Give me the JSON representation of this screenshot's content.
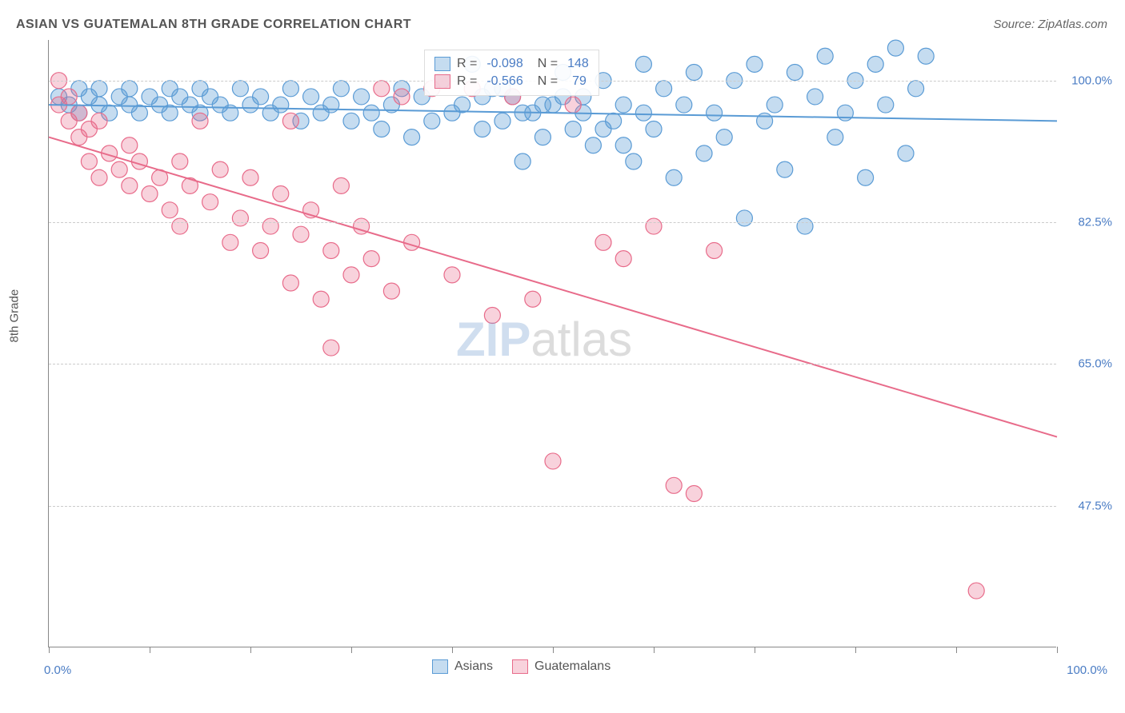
{
  "title": "ASIAN VS GUATEMALAN 8TH GRADE CORRELATION CHART",
  "source": "Source: ZipAtlas.com",
  "y_axis_label": "8th Grade",
  "x_start": "0.0%",
  "x_end": "100.0%",
  "watermark_zip": "ZIP",
  "watermark_atlas": "atlas",
  "chart": {
    "type": "scatter",
    "xlim": [
      0,
      100
    ],
    "ylim": [
      30,
      105
    ],
    "y_ticks": [
      47.5,
      65.0,
      82.5,
      100.0
    ],
    "y_tick_labels": [
      "47.5%",
      "65.0%",
      "82.5%",
      "100.0%"
    ],
    "x_ticks": [
      0,
      10,
      20,
      30,
      40,
      50,
      60,
      70,
      80,
      90,
      100
    ],
    "background_color": "#ffffff",
    "grid_color": "#cccccc",
    "marker_radius": 10,
    "marker_opacity": 0.45,
    "line_width": 2,
    "series": [
      {
        "name": "Asians",
        "color": "#5a9bd5",
        "fill": "rgba(90,155,213,0.35)",
        "stroke": "#5a9bd5",
        "r_value": "-0.098",
        "n_value": "148",
        "trend_line": {
          "x1": 0,
          "y1": 97,
          "x2": 100,
          "y2": 95
        },
        "points": [
          [
            1,
            98
          ],
          [
            2,
            97
          ],
          [
            3,
            99
          ],
          [
            3,
            96
          ],
          [
            4,
            98
          ],
          [
            5,
            97
          ],
          [
            5,
            99
          ],
          [
            6,
            96
          ],
          [
            7,
            98
          ],
          [
            8,
            97
          ],
          [
            8,
            99
          ],
          [
            9,
            96
          ],
          [
            10,
            98
          ],
          [
            11,
            97
          ],
          [
            12,
            99
          ],
          [
            12,
            96
          ],
          [
            13,
            98
          ],
          [
            14,
            97
          ],
          [
            15,
            99
          ],
          [
            15,
            96
          ],
          [
            16,
            98
          ],
          [
            17,
            97
          ],
          [
            18,
            96
          ],
          [
            19,
            99
          ],
          [
            20,
            97
          ],
          [
            21,
            98
          ],
          [
            22,
            96
          ],
          [
            23,
            97
          ],
          [
            24,
            99
          ],
          [
            25,
            95
          ],
          [
            26,
            98
          ],
          [
            27,
            96
          ],
          [
            28,
            97
          ],
          [
            29,
            99
          ],
          [
            30,
            95
          ],
          [
            31,
            98
          ],
          [
            32,
            96
          ],
          [
            33,
            94
          ],
          [
            34,
            97
          ],
          [
            35,
            99
          ],
          [
            36,
            93
          ],
          [
            37,
            98
          ],
          [
            38,
            95
          ],
          [
            39,
            100
          ],
          [
            40,
            96
          ],
          [
            41,
            97
          ],
          [
            42,
            102
          ],
          [
            43,
            94
          ],
          [
            44,
            99
          ],
          [
            45,
            95
          ],
          [
            46,
            98
          ],
          [
            47,
            90
          ],
          [
            48,
            96
          ],
          [
            49,
            93
          ],
          [
            50,
            97
          ],
          [
            51,
            101
          ],
          [
            52,
            94
          ],
          [
            53,
            98
          ],
          [
            54,
            92
          ],
          [
            55,
            100
          ],
          [
            56,
            95
          ],
          [
            57,
            97
          ],
          [
            58,
            90
          ],
          [
            59,
            102
          ],
          [
            60,
            94
          ],
          [
            61,
            99
          ],
          [
            62,
            88
          ],
          [
            63,
            97
          ],
          [
            64,
            101
          ],
          [
            65,
            91
          ],
          [
            66,
            96
          ],
          [
            67,
            93
          ],
          [
            68,
            100
          ],
          [
            69,
            83
          ],
          [
            70,
            102
          ],
          [
            71,
            95
          ],
          [
            72,
            97
          ],
          [
            73,
            89
          ],
          [
            74,
            101
          ],
          [
            75,
            82
          ],
          [
            76,
            98
          ],
          [
            77,
            103
          ],
          [
            78,
            93
          ],
          [
            79,
            96
          ],
          [
            80,
            100
          ],
          [
            81,
            88
          ],
          [
            82,
            102
          ],
          [
            83,
            97
          ],
          [
            84,
            104
          ],
          [
            85,
            91
          ],
          [
            86,
            99
          ],
          [
            87,
            103
          ],
          [
            43,
            98
          ],
          [
            45,
            99
          ],
          [
            47,
            96
          ],
          [
            49,
            97
          ],
          [
            51,
            98
          ],
          [
            53,
            96
          ],
          [
            55,
            94
          ],
          [
            57,
            92
          ],
          [
            59,
            96
          ]
        ]
      },
      {
        "name": "Guatemalans",
        "color": "#e86b8a",
        "fill": "rgba(232,107,138,0.30)",
        "stroke": "#e86b8a",
        "r_value": "-0.566",
        "n_value": "79",
        "trend_line": {
          "x1": 0,
          "y1": 93,
          "x2": 100,
          "y2": 56
        },
        "points": [
          [
            1,
            100
          ],
          [
            1,
            97
          ],
          [
            2,
            98
          ],
          [
            2,
            95
          ],
          [
            3,
            96
          ],
          [
            3,
            93
          ],
          [
            4,
            94
          ],
          [
            4,
            90
          ],
          [
            5,
            95
          ],
          [
            5,
            88
          ],
          [
            6,
            91
          ],
          [
            7,
            89
          ],
          [
            8,
            92
          ],
          [
            8,
            87
          ],
          [
            9,
            90
          ],
          [
            10,
            86
          ],
          [
            11,
            88
          ],
          [
            12,
            84
          ],
          [
            13,
            90
          ],
          [
            13,
            82
          ],
          [
            14,
            87
          ],
          [
            15,
            95
          ],
          [
            16,
            85
          ],
          [
            17,
            89
          ],
          [
            18,
            80
          ],
          [
            19,
            83
          ],
          [
            20,
            88
          ],
          [
            21,
            79
          ],
          [
            22,
            82
          ],
          [
            23,
            86
          ],
          [
            24,
            75
          ],
          [
            24,
            95
          ],
          [
            25,
            81
          ],
          [
            26,
            84
          ],
          [
            27,
            73
          ],
          [
            28,
            79
          ],
          [
            28,
            67
          ],
          [
            29,
            87
          ],
          [
            30,
            76
          ],
          [
            31,
            82
          ],
          [
            32,
            78
          ],
          [
            33,
            99
          ],
          [
            34,
            74
          ],
          [
            35,
            98
          ],
          [
            36,
            80
          ],
          [
            38,
            99
          ],
          [
            40,
            76
          ],
          [
            42,
            99
          ],
          [
            44,
            71
          ],
          [
            46,
            98
          ],
          [
            48,
            73
          ],
          [
            50,
            53
          ],
          [
            52,
            97
          ],
          [
            55,
            80
          ],
          [
            57,
            78
          ],
          [
            60,
            82
          ],
          [
            62,
            50
          ],
          [
            64,
            49
          ],
          [
            66,
            79
          ],
          [
            92,
            37
          ]
        ]
      }
    ]
  },
  "legend_bottom": {
    "asians": "Asians",
    "guatemalans": "Guatemalans"
  }
}
